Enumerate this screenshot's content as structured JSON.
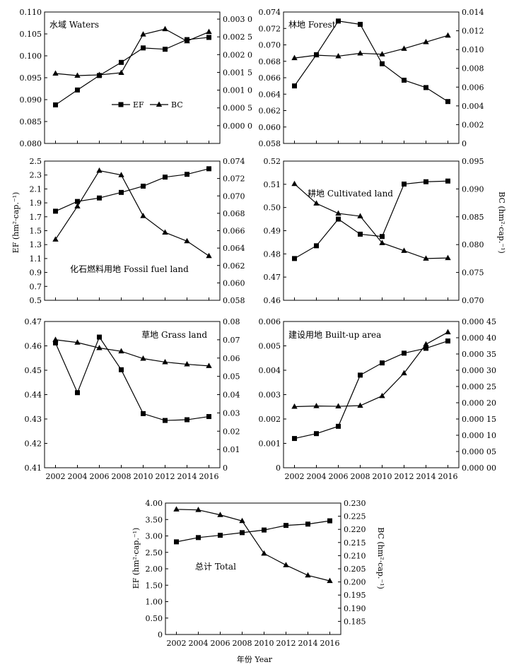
{
  "figure": {
    "y_left_label": "EF (hm²·cap.⁻¹)",
    "y_right_label": "BC (hm²·cap.⁻¹)",
    "x_label": "年份 Year"
  },
  "chart_data": [
    {
      "type": "line",
      "title": "水域 Waters",
      "x": [
        2002,
        2004,
        2006,
        2008,
        2010,
        2012,
        2014,
        2016
      ],
      "xlim": [
        2001,
        2017
      ],
      "xticks": [
        "2002",
        "2004",
        "2006",
        "2008",
        "2010",
        "2012",
        "2014",
        "2016"
      ],
      "ylim_left": [
        0.08,
        0.11
      ],
      "yticks_left": [
        "0.080",
        "0.085",
        "0.090",
        "0.095",
        "0.100",
        "0.105",
        "0.110"
      ],
      "ylim_right": [
        -0.0005,
        0.0032
      ],
      "yticks_right": [
        "0.000 0",
        "0.000 5",
        "0.001 0",
        "0.001 5",
        "0.002 0",
        "0.002 5",
        "0.003 0"
      ],
      "legend": {
        "show": true,
        "placement": "center",
        "ef_label": "EF",
        "bc_label": "BC"
      },
      "series": [
        {
          "name": "EF",
          "axis": "left",
          "marker": "square",
          "values": [
            0.0888,
            0.0922,
            0.0955,
            0.0985,
            0.1018,
            0.1015,
            0.1037,
            0.1042
          ]
        },
        {
          "name": "BC",
          "axis": "right",
          "marker": "triangle",
          "values": [
            0.00147,
            0.00141,
            0.00143,
            0.00149,
            0.00257,
            0.00272,
            0.00238,
            0.00264
          ]
        }
      ]
    },
    {
      "type": "line",
      "title": "林地 Forest",
      "x": [
        2002,
        2004,
        2006,
        2008,
        2010,
        2012,
        2014,
        2016
      ],
      "xlim": [
        2001,
        2017
      ],
      "xticks": [
        "2002",
        "2004",
        "2006",
        "2008",
        "2010",
        "2012",
        "2014",
        "2016"
      ],
      "ylim_left": [
        0.058,
        0.074
      ],
      "yticks_left": [
        "0.058",
        "0.060",
        "0.062",
        "0.064",
        "0.066",
        "0.068",
        "0.070",
        "0.072",
        "0.074"
      ],
      "ylim_right": [
        0,
        0.014
      ],
      "yticks_right": [
        "0",
        "0.002",
        "0.004",
        "0.006",
        "0.008",
        "0.010",
        "0.012",
        "0.014"
      ],
      "legend": {
        "show": false
      },
      "series": [
        {
          "name": "EF",
          "axis": "left",
          "marker": "square",
          "values": [
            0.065,
            0.0688,
            0.0729,
            0.0725,
            0.0677,
            0.0657,
            0.0648,
            0.0631
          ]
        },
        {
          "name": "BC",
          "axis": "right",
          "marker": "triangle",
          "values": [
            0.0091,
            0.0094,
            0.0093,
            0.0096,
            0.0095,
            0.0101,
            0.0108,
            0.0115
          ]
        }
      ]
    },
    {
      "type": "line",
      "title": "化石燃料用地 Fossil fuel land",
      "x": [
        2002,
        2004,
        2006,
        2008,
        2010,
        2012,
        2014,
        2016
      ],
      "xlim": [
        2001,
        2017
      ],
      "xticks": [
        "2002",
        "2004",
        "2006",
        "2008",
        "2010",
        "2012",
        "2014",
        "2016"
      ],
      "ylim_left": [
        0.5,
        2.5
      ],
      "yticks_left": [
        "0.5",
        "0.7",
        "0.9",
        "1.1",
        "1.3",
        "1.5",
        "1.7",
        "1.9",
        "2.1",
        "2.3",
        "2.5"
      ],
      "ylim_right": [
        0.058,
        0.074
      ],
      "yticks_right": [
        "0.058",
        "0.060",
        "0.062",
        "0.064",
        "0.066",
        "0.068",
        "0.070",
        "0.072",
        "0.074"
      ],
      "legend": {
        "show": false
      },
      "series": [
        {
          "name": "EF",
          "axis": "left",
          "marker": "square",
          "values": [
            1.78,
            1.92,
            1.97,
            2.05,
            2.14,
            2.27,
            2.31,
            2.39
          ]
        },
        {
          "name": "BC",
          "axis": "right",
          "marker": "triangle",
          "values": [
            0.065,
            0.0688,
            0.0729,
            0.0724,
            0.0677,
            0.0658,
            0.0648,
            0.0631
          ]
        }
      ]
    },
    {
      "type": "line",
      "title": "耕地 Cultivated land",
      "x": [
        2002,
        2004,
        2006,
        2008,
        2010,
        2012,
        2014,
        2016
      ],
      "xlim": [
        2001,
        2017
      ],
      "xticks": [
        "2002",
        "2004",
        "2006",
        "2008",
        "2010",
        "2012",
        "2014",
        "2016"
      ],
      "ylim_left": [
        0.46,
        0.52
      ],
      "yticks_left": [
        "0.46",
        "0.47",
        "0.48",
        "0.49",
        "0.50",
        "0.51",
        "0.52"
      ],
      "ylim_right": [
        0.07,
        0.095
      ],
      "yticks_right": [
        "0.070",
        "0.075",
        "0.080",
        "0.085",
        "0.090",
        "0.095"
      ],
      "legend": {
        "show": false
      },
      "series": [
        {
          "name": "EF",
          "axis": "left",
          "marker": "square",
          "values": [
            0.478,
            0.4835,
            0.495,
            0.4885,
            0.4875,
            0.5101,
            0.5111,
            0.5114
          ]
        },
        {
          "name": "BC",
          "axis": "right",
          "marker": "triangle",
          "values": [
            0.0909,
            0.0874,
            0.0856,
            0.0851,
            0.0803,
            0.0789,
            0.0775,
            0.0776
          ]
        }
      ]
    },
    {
      "type": "line",
      "title": "草地 Grass land",
      "x": [
        2002,
        2004,
        2006,
        2008,
        2010,
        2012,
        2014,
        2016
      ],
      "xlim": [
        2001,
        2017
      ],
      "xticks": [
        "2002",
        "2004",
        "2006",
        "2008",
        "2010",
        "2012",
        "2014",
        "2016"
      ],
      "ylim_left": [
        0.41,
        0.47
      ],
      "yticks_left": [
        "0.41",
        "0.42",
        "0.43",
        "0.44",
        "0.45",
        "0.46",
        "0.47"
      ],
      "ylim_right": [
        0,
        0.08
      ],
      "yticks_right": [
        "0",
        "0.01",
        "0.02",
        "0.03",
        "0.04",
        "0.05",
        "0.06",
        "0.07",
        "0.08"
      ],
      "legend": {
        "show": false
      },
      "series": [
        {
          "name": "EF",
          "axis": "left",
          "marker": "square",
          "values": [
            0.4612,
            0.4408,
            0.4636,
            0.4502,
            0.4322,
            0.4294,
            0.4297,
            0.431
          ]
        },
        {
          "name": "BC",
          "axis": "right",
          "marker": "triangle",
          "values": [
            0.07,
            0.0685,
            0.0655,
            0.0637,
            0.0597,
            0.0578,
            0.0566,
            0.0557
          ]
        }
      ]
    },
    {
      "type": "line",
      "title": "建设用地 Built-up area",
      "x": [
        2002,
        2004,
        2006,
        2008,
        2010,
        2012,
        2014,
        2016
      ],
      "xlim": [
        2001,
        2017
      ],
      "xticks": [
        "2002",
        "2004",
        "2006",
        "2008",
        "2010",
        "2012",
        "2014",
        "2016"
      ],
      "ylim_left": [
        0,
        0.006
      ],
      "yticks_left": [
        "0",
        "0.001",
        "0.002",
        "0.003",
        "0.004",
        "0.005",
        "0.006"
      ],
      "ylim_right": [
        0,
        0.00045
      ],
      "yticks_right": [
        "0.000 00",
        "0.000 05",
        "0.000 10",
        "0.000 15",
        "0.000 20",
        "0.000 25",
        "0.000 30",
        "0.000 35",
        "0.000 40",
        "0.000 45"
      ],
      "legend": {
        "show": false
      },
      "series": [
        {
          "name": "EF",
          "axis": "left",
          "marker": "square",
          "values": [
            0.0012,
            0.0014,
            0.0017,
            0.0038,
            0.0043,
            0.0047,
            0.0049,
            0.0052
          ]
        },
        {
          "name": "BC",
          "axis": "right",
          "marker": "triangle",
          "values": [
            0.000188,
            0.00019,
            0.000189,
            0.000191,
            0.000221,
            0.000291,
            0.00038,
            0.000417
          ]
        }
      ]
    },
    {
      "type": "line",
      "title": "总计 Total",
      "x": [
        2002,
        2004,
        2006,
        2008,
        2010,
        2012,
        2014,
        2016
      ],
      "xlim": [
        2001,
        2017
      ],
      "xticks": [
        "2002",
        "2004",
        "2006",
        "2008",
        "2010",
        "2012",
        "2014",
        "2016"
      ],
      "ylim_left": [
        0,
        4
      ],
      "yticks_left": [
        "0",
        "0.50",
        "1.00",
        "1.50",
        "2.00",
        "2.50",
        "3.00",
        "3.50",
        "4.00"
      ],
      "ylim_right": [
        0.18,
        0.23
      ],
      "yticks_right": [
        "0.185",
        "0.190",
        "0.195",
        "0.200",
        "0.205",
        "0.210",
        "0.215",
        "0.220",
        "0.225",
        "0.230"
      ],
      "legend": {
        "show": false
      },
      "series": [
        {
          "name": "EF",
          "axis": "left",
          "marker": "square",
          "values": [
            2.82,
            2.95,
            3.02,
            3.1,
            3.18,
            3.32,
            3.36,
            3.46
          ]
        },
        {
          "name": "BC",
          "axis": "right",
          "marker": "triangle",
          "values": [
            0.2276,
            0.2274,
            0.2255,
            0.2232,
            0.2108,
            0.2064,
            0.2025,
            0.2004
          ]
        }
      ]
    }
  ]
}
